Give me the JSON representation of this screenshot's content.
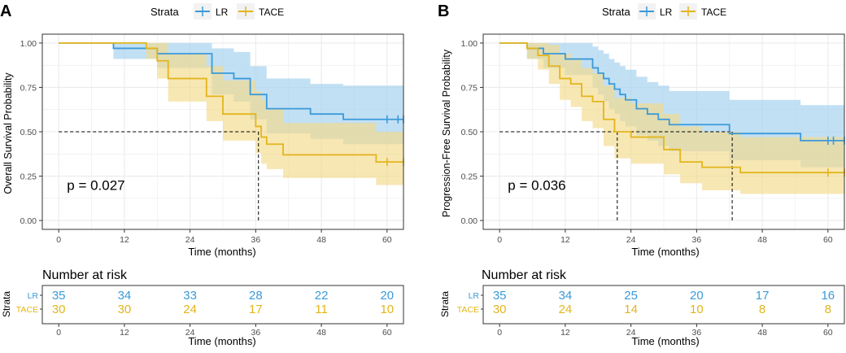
{
  "colors": {
    "lr": "#3b9ad9",
    "tace": "#e3b51c",
    "lr_band": "#a8d3f0",
    "tace_band": "#f2da8a",
    "axis_text": "#4d4d4d",
    "grid": "#ebebeb",
    "border": "#333333"
  },
  "chart_data": [
    {
      "type": "line",
      "subtype": "kaplan-meier",
      "panel_letter": "A",
      "legend": {
        "title": "Strata",
        "entries": [
          "LR",
          "TACE"
        ],
        "placement": "top"
      },
      "ylabel": "Overall Survival Probability",
      "xlabel": "Time (months)",
      "xlim": [
        -3,
        63
      ],
      "ylim": [
        -0.05,
        1.05
      ],
      "xticks": [
        0,
        12,
        24,
        36,
        48,
        60
      ],
      "xtick_labels": [
        "0",
        "12",
        "24",
        "36",
        "48",
        "60"
      ],
      "yticks": [
        0,
        0.25,
        0.5,
        0.75,
        1.0
      ],
      "ytick_labels": [
        "0.00",
        "0.25",
        "0.50",
        "0.75",
        "1.00"
      ],
      "pvalue": "p = 0.027",
      "pvalue_pos": [
        1.5,
        0.2
      ],
      "median_line": {
        "y": 0.5,
        "x_end": 36.5
      },
      "series": [
        {
          "name": "LR",
          "x": [
            0,
            10,
            12,
            18,
            20,
            22,
            28,
            30,
            32,
            35,
            38,
            40,
            46,
            52,
            63
          ],
          "y": [
            1.0,
            0.97,
            0.97,
            0.94,
            0.94,
            0.94,
            0.83,
            0.83,
            0.8,
            0.71,
            0.63,
            0.63,
            0.6,
            0.57,
            0.57
          ],
          "lower": [
            1.0,
            0.91,
            0.91,
            0.86,
            0.86,
            0.86,
            0.71,
            0.71,
            0.67,
            0.57,
            0.49,
            0.49,
            0.46,
            0.43,
            0.43
          ],
          "upper": [
            1.0,
            1.0,
            1.0,
            1.0,
            1.0,
            1.0,
            0.97,
            0.97,
            0.95,
            0.87,
            0.8,
            0.8,
            0.77,
            0.76,
            0.76
          ],
          "censored": [
            [
              60,
              0.57
            ],
            [
              62,
              0.57
            ],
            [
              63,
              0.57
            ]
          ]
        },
        {
          "name": "TACE",
          "x": [
            0,
            16,
            18,
            20,
            23,
            27,
            30,
            34,
            36,
            37,
            38,
            41,
            43,
            50,
            58,
            63
          ],
          "y": [
            1.0,
            0.97,
            0.9,
            0.8,
            0.8,
            0.7,
            0.6,
            0.6,
            0.53,
            0.47,
            0.43,
            0.37,
            0.37,
            0.37,
            0.33,
            0.33
          ],
          "lower": [
            1.0,
            0.91,
            0.8,
            0.67,
            0.67,
            0.56,
            0.45,
            0.45,
            0.38,
            0.32,
            0.29,
            0.24,
            0.24,
            0.24,
            0.2,
            0.2
          ],
          "upper": [
            1.0,
            1.0,
            1.0,
            0.94,
            0.94,
            0.87,
            0.79,
            0.79,
            0.73,
            0.68,
            0.63,
            0.55,
            0.55,
            0.55,
            0.5,
            0.5
          ],
          "censored": [
            [
              60,
              0.33
            ],
            [
              63,
              0.33
            ]
          ]
        }
      ],
      "risk_table": {
        "title": "Number at risk",
        "ylabel": "Strata",
        "rows": [
          {
            "label": "LR",
            "values": [
              "35",
              "34",
              "33",
              "28",
              "22",
              "20"
            ]
          },
          {
            "label": "TACE",
            "values": [
              "30",
              "30",
              "24",
              "17",
              "11",
              "10"
            ]
          }
        ],
        "xlabel": "Time (months)"
      }
    },
    {
      "type": "line",
      "subtype": "kaplan-meier",
      "panel_letter": "B",
      "legend": {
        "title": "Strata",
        "entries": [
          "LR",
          "TACE"
        ],
        "placement": "top"
      },
      "ylabel": "Progression-Free Survival Probability",
      "xlabel": "Time (months)",
      "xlim": [
        -3,
        63
      ],
      "ylim": [
        -0.05,
        1.05
      ],
      "xticks": [
        0,
        12,
        24,
        36,
        48,
        60
      ],
      "xtick_labels": [
        "0",
        "12",
        "24",
        "36",
        "48",
        "60"
      ],
      "yticks": [
        0,
        0.25,
        0.5,
        0.75,
        1.0
      ],
      "ytick_labels": [
        "0.00",
        "0.25",
        "0.50",
        "0.75",
        "1.00"
      ],
      "pvalue": "p = 0.036",
      "pvalue_pos": [
        1.5,
        0.2
      ],
      "median_line": {
        "y": 0.5,
        "x_end": 42.5,
        "drops": [
          21.5,
          42.5
        ]
      },
      "series": [
        {
          "name": "LR",
          "x": [
            0,
            5,
            8,
            12,
            17,
            18,
            19,
            20,
            21,
            22,
            23,
            25,
            27,
            29,
            31,
            36,
            42,
            48,
            55,
            63
          ],
          "y": [
            1.0,
            0.97,
            0.94,
            0.91,
            0.86,
            0.83,
            0.8,
            0.77,
            0.74,
            0.71,
            0.68,
            0.63,
            0.6,
            0.57,
            0.54,
            0.54,
            0.49,
            0.49,
            0.45,
            0.45
          ],
          "lower": [
            1.0,
            0.91,
            0.86,
            0.82,
            0.75,
            0.71,
            0.67,
            0.63,
            0.6,
            0.56,
            0.53,
            0.48,
            0.45,
            0.42,
            0.39,
            0.39,
            0.34,
            0.34,
            0.3,
            0.3
          ],
          "upper": [
            1.0,
            1.0,
            1.0,
            1.0,
            0.98,
            0.96,
            0.94,
            0.91,
            0.89,
            0.87,
            0.85,
            0.81,
            0.78,
            0.76,
            0.73,
            0.73,
            0.68,
            0.68,
            0.65,
            0.65
          ],
          "censored": [
            [
              60,
              0.45
            ],
            [
              61,
              0.45
            ],
            [
              63,
              0.45
            ]
          ]
        },
        {
          "name": "TACE",
          "x": [
            0,
            5,
            7,
            9,
            11,
            13,
            15,
            17,
            19,
            21,
            24,
            30,
            33,
            35,
            37,
            42,
            44,
            63
          ],
          "y": [
            1.0,
            0.97,
            0.93,
            0.87,
            0.8,
            0.77,
            0.7,
            0.67,
            0.57,
            0.5,
            0.47,
            0.4,
            0.33,
            0.33,
            0.3,
            0.3,
            0.27,
            0.27
          ],
          "lower": [
            1.0,
            0.91,
            0.85,
            0.77,
            0.68,
            0.64,
            0.56,
            0.52,
            0.42,
            0.35,
            0.32,
            0.26,
            0.21,
            0.21,
            0.17,
            0.17,
            0.15,
            0.15
          ],
          "upper": [
            1.0,
            1.0,
            1.0,
            0.99,
            0.94,
            0.91,
            0.86,
            0.83,
            0.76,
            0.69,
            0.66,
            0.6,
            0.53,
            0.53,
            0.5,
            0.5,
            0.47,
            0.47
          ],
          "censored": [
            [
              60,
              0.27
            ],
            [
              63,
              0.27
            ]
          ]
        }
      ],
      "risk_table": {
        "title": "Number at risk",
        "ylabel": "Strata",
        "rows": [
          {
            "label": "LR",
            "values": [
              "35",
              "34",
              "25",
              "20",
              "17",
              "16"
            ]
          },
          {
            "label": "TACE",
            "values": [
              "30",
              "24",
              "14",
              "10",
              "8",
              "8"
            ]
          }
        ],
        "xlabel": "Time (months)"
      }
    }
  ]
}
